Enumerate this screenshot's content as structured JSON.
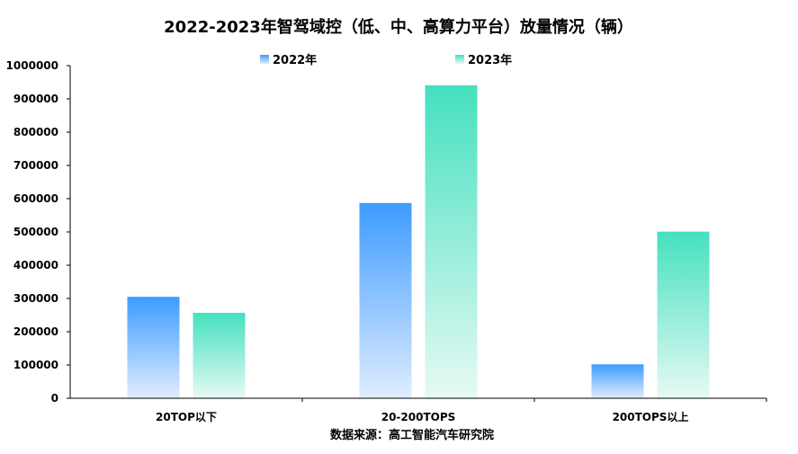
{
  "chart_data": {
    "type": "bar",
    "title": "2022-2023年智驾域控（低、中、高算力平台）放量情况（辆）",
    "categories": [
      "20TOP以下",
      "20-200TOPS",
      "200TOPS以上"
    ],
    "series": [
      {
        "name": "2022年",
        "values": [
          305000,
          587000,
          102000
        ],
        "color_top": "#3d9bff",
        "color_bottom": "#e0edff"
      },
      {
        "name": "2023年",
        "values": [
          257000,
          941000,
          501000
        ],
        "color_top": "#45e0bf",
        "color_bottom": "#e6faf4"
      }
    ],
    "ylim": [
      0,
      1000000
    ],
    "yticks": [
      0,
      100000,
      200000,
      300000,
      400000,
      500000,
      600000,
      700000,
      800000,
      900000,
      1000000
    ],
    "legend_position": "top-center",
    "grid": false,
    "source": "数据来源：高工智能汽车研究院"
  }
}
